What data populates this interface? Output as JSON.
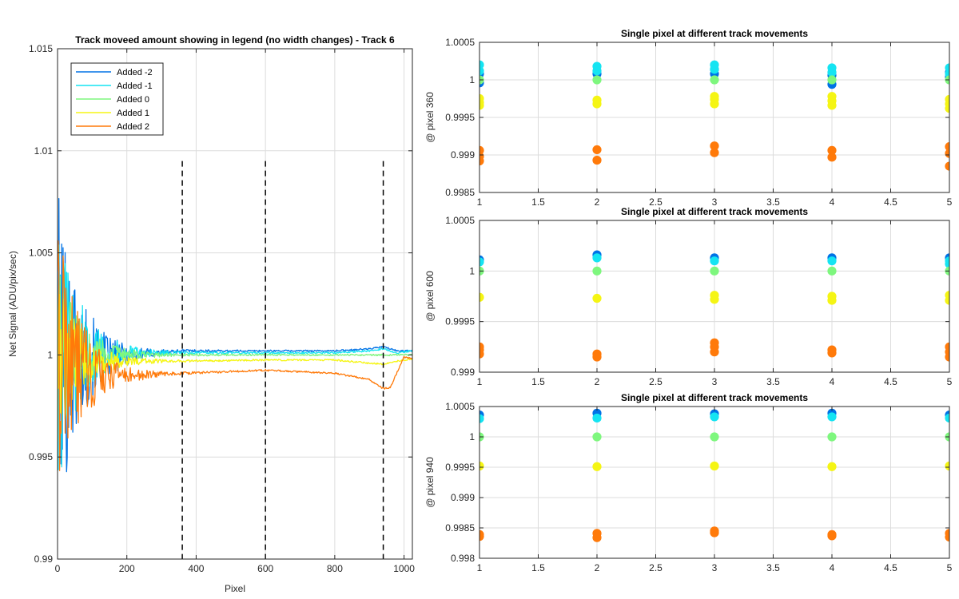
{
  "chart_data": [
    {
      "type": "line",
      "title": "Track moveed amount showing in legend (no width changes) - Track 6",
      "xlabel": "Pixel",
      "ylabel": "Net Signal (ADU/pix/sec)",
      "xlim": [
        0,
        1024
      ],
      "ylim": [
        0.99,
        1.015
      ],
      "xticks": [
        0,
        200,
        400,
        600,
        800,
        1000
      ],
      "xtick_labels": [
        "0",
        "200",
        "400",
        "600",
        "800",
        "1000"
      ],
      "yticks": [
        0.99,
        0.995,
        1,
        1.005,
        1.01,
        1.015
      ],
      "ytick_labels": [
        "0.99",
        "0.995",
        "1",
        "1.005",
        "1.01",
        "1.015"
      ],
      "grid": true,
      "legend_position": "top-left",
      "vertical_markers": [
        360,
        600,
        940
      ],
      "series": [
        {
          "name": "Added -2",
          "color": "#0072e6",
          "noise_amp": 0.0085,
          "x": [
            0,
            100,
            200,
            360,
            600,
            800,
            900,
            940,
            980,
            1024
          ],
          "y": [
            1.0,
            0.99985,
            1.0,
            1.0002,
            1.0002,
            1.0002,
            1.0003,
            1.0004,
            1.0002,
            1.0002
          ]
        },
        {
          "name": "Added -1",
          "color": "#15e4f2",
          "noise_amp": 0.0065,
          "x": [
            0,
            100,
            200,
            360,
            600,
            800,
            900,
            940,
            980,
            1024
          ],
          "y": [
            1.0,
            1.0001,
            1.0001,
            1.0001,
            1.0001,
            1.0001,
            1.0002,
            1.0003,
            1.0001,
            1.0002
          ]
        },
        {
          "name": "Added 0",
          "color": "#7ef77e",
          "noise_amp": 0.0045,
          "x": [
            0,
            100,
            200,
            360,
            600,
            800,
            900,
            940,
            980,
            1024
          ],
          "y": [
            1.0,
            1.0,
            1.0,
            1.0,
            1.0,
            1.0,
            1.0,
            1.0,
            1.0,
            1.0
          ]
        },
        {
          "name": "Added 1",
          "color": "#f5f514",
          "noise_amp": 0.004,
          "x": [
            0,
            100,
            200,
            360,
            600,
            800,
            900,
            940,
            980,
            1024
          ],
          "y": [
            1.0,
            0.9997,
            0.9997,
            0.9997,
            0.99975,
            0.99975,
            0.9996,
            0.99955,
            0.9997,
            0.9998
          ]
        },
        {
          "name": "Added 2",
          "color": "#ff7a0a",
          "noise_amp": 0.007,
          "x": [
            0,
            100,
            200,
            360,
            600,
            800,
            900,
            940,
            960,
            1000,
            1024
          ],
          "y": [
            1.0,
            0.999,
            0.999,
            0.9991,
            0.99925,
            0.9991,
            0.9988,
            0.99835,
            0.9984,
            0.9999,
            0.9998
          ]
        }
      ]
    },
    {
      "type": "scatter",
      "title": "Single pixel at different track movements",
      "xlabel": "",
      "ylabel": "@ pixel 360",
      "xlim": [
        1,
        5
      ],
      "ylim": [
        0.9985,
        1.0005
      ],
      "xticks": [
        1,
        1.5,
        2,
        2.5,
        3,
        3.5,
        4,
        4.5,
        5
      ],
      "xtick_labels": [
        "1",
        "1.5",
        "2",
        "2.5",
        "3",
        "3.5",
        "4",
        "4.5",
        "5"
      ],
      "yticks": [
        0.9985,
        0.999,
        0.9995,
        1,
        1.0005
      ],
      "ytick_labels": [
        "0.9985",
        "0.999",
        "0.9995",
        "1",
        "1.0005"
      ],
      "grid": true,
      "series": [
        {
          "color": "#0072e6",
          "x": [
            1,
            1,
            2,
            3,
            3,
            4,
            4,
            5,
            5
          ],
          "y": [
            0.99996,
            1.00008,
            1.00008,
            1.00008,
            1.00014,
            0.99994,
            1.00006,
            1.00004,
            1.0001
          ]
        },
        {
          "color": "#15e4f2",
          "x": [
            1,
            1,
            2,
            2,
            3,
            3,
            4,
            4,
            5,
            5
          ],
          "y": [
            1.00012,
            1.0002,
            1.00012,
            1.00018,
            1.00014,
            1.0002,
            1.0001,
            1.00016,
            1.00008,
            1.00016
          ]
        },
        {
          "color": "#7ef77e",
          "x": [
            1,
            2,
            3,
            4,
            5
          ],
          "y": [
            1.0,
            1.0,
            1.0,
            1.0,
            1.0
          ]
        },
        {
          "color": "#f5f514",
          "x": [
            1,
            1,
            1,
            2,
            2,
            3,
            3,
            3,
            4,
            4,
            4,
            5,
            5,
            5
          ],
          "y": [
            0.99966,
            0.9997,
            0.99975,
            0.99968,
            0.99973,
            0.99968,
            0.99974,
            0.99978,
            0.99966,
            0.99972,
            0.99978,
            0.99962,
            0.99968,
            0.99974
          ]
        },
        {
          "color": "#ff7a0a",
          "x": [
            1,
            1,
            1,
            2,
            2,
            3,
            3,
            4,
            4,
            5,
            5,
            5
          ],
          "y": [
            0.99892,
            0.99898,
            0.99906,
            0.99893,
            0.99907,
            0.99903,
            0.99912,
            0.99897,
            0.99906,
            0.99885,
            0.99902,
            0.99911
          ]
        }
      ]
    },
    {
      "type": "scatter",
      "title": "Single pixel at different track movements",
      "xlabel": "",
      "ylabel": "@ pixel 600",
      "xlim": [
        1,
        5
      ],
      "ylim": [
        0.999,
        1.0005
      ],
      "xticks": [
        1,
        1.5,
        2,
        2.5,
        3,
        3.5,
        4,
        4.5,
        5
      ],
      "xtick_labels": [
        "1",
        "1.5",
        "2",
        "2.5",
        "3",
        "3.5",
        "4",
        "4.5",
        "5"
      ],
      "yticks": [
        0.999,
        0.9995,
        1,
        1.0005
      ],
      "ytick_labels": [
        "0.999",
        "0.9995",
        "1",
        "1.0005"
      ],
      "grid": true,
      "series": [
        {
          "color": "#0072e6",
          "x": [
            1,
            2,
            3,
            4,
            5
          ],
          "y": [
            1.00011,
            1.00016,
            1.00013,
            1.00013,
            1.00013
          ]
        },
        {
          "color": "#15e4f2",
          "x": [
            1,
            2,
            3,
            4,
            5,
            5
          ],
          "y": [
            1.00009,
            1.00013,
            1.0001,
            1.0001,
            1.00007,
            1.0001
          ]
        },
        {
          "color": "#7ef77e",
          "x": [
            1,
            2,
            3,
            4,
            5
          ],
          "y": [
            1.0,
            1.0,
            1.0,
            1.0,
            1.0
          ]
        },
        {
          "color": "#f5f514",
          "x": [
            1,
            2,
            3,
            3,
            4,
            4,
            5,
            5
          ],
          "y": [
            0.99974,
            0.99973,
            0.99972,
            0.99976,
            0.99971,
            0.99975,
            0.99971,
            0.99976
          ]
        },
        {
          "color": "#ff7a0a",
          "x": [
            1,
            1,
            1,
            2,
            2,
            3,
            3,
            3,
            4,
            4,
            5,
            5,
            5
          ],
          "y": [
            0.99918,
            0.99922,
            0.99925,
            0.99915,
            0.99918,
            0.9992,
            0.99925,
            0.99929,
            0.99919,
            0.99922,
            0.99915,
            0.9992,
            0.99925
          ]
        }
      ]
    },
    {
      "type": "scatter",
      "title": "Single pixel at different track movements",
      "xlabel": "",
      "ylabel": "@ pixel 940",
      "xlim": [
        1,
        5
      ],
      "ylim": [
        0.998,
        1.0005
      ],
      "xticks": [
        1,
        1.5,
        2,
        2.5,
        3,
        3.5,
        4,
        4.5,
        5
      ],
      "xtick_labels": [
        "1",
        "1.5",
        "2",
        "2.5",
        "3",
        "3.5",
        "4",
        "4.5",
        "5"
      ],
      "yticks": [
        0.998,
        0.9985,
        0.999,
        0.9995,
        1,
        1.0005
      ],
      "ytick_labels": [
        "0.998",
        "0.9985",
        "0.999",
        "0.9995",
        "1",
        "1.0005"
      ],
      "grid": true,
      "series": [
        {
          "color": "#0072e6",
          "x": [
            1,
            2,
            3,
            4,
            5
          ],
          "y": [
            1.00036,
            1.00039,
            1.00038,
            1.00039,
            1.00036
          ]
        },
        {
          "color": "#15e4f2",
          "x": [
            1,
            2,
            3,
            4,
            5
          ],
          "y": [
            1.0003,
            1.00031,
            1.00033,
            1.00033,
            1.00031
          ]
        },
        {
          "color": "#7ef77e",
          "x": [
            1,
            2,
            3,
            4,
            5
          ],
          "y": [
            1.0,
            1.0,
            1.0,
            1.0,
            1.0
          ]
        },
        {
          "color": "#f5f514",
          "x": [
            1,
            2,
            3,
            4,
            5
          ],
          "y": [
            0.99952,
            0.99951,
            0.99952,
            0.99951,
            0.99952
          ]
        },
        {
          "color": "#ff7a0a",
          "x": [
            1,
            1,
            2,
            2,
            3,
            3,
            4,
            4,
            5,
            5
          ],
          "y": [
            0.99836,
            0.99839,
            0.99834,
            0.99841,
            0.99842,
            0.99845,
            0.99837,
            0.99839,
            0.99835,
            0.99841
          ]
        }
      ]
    }
  ]
}
